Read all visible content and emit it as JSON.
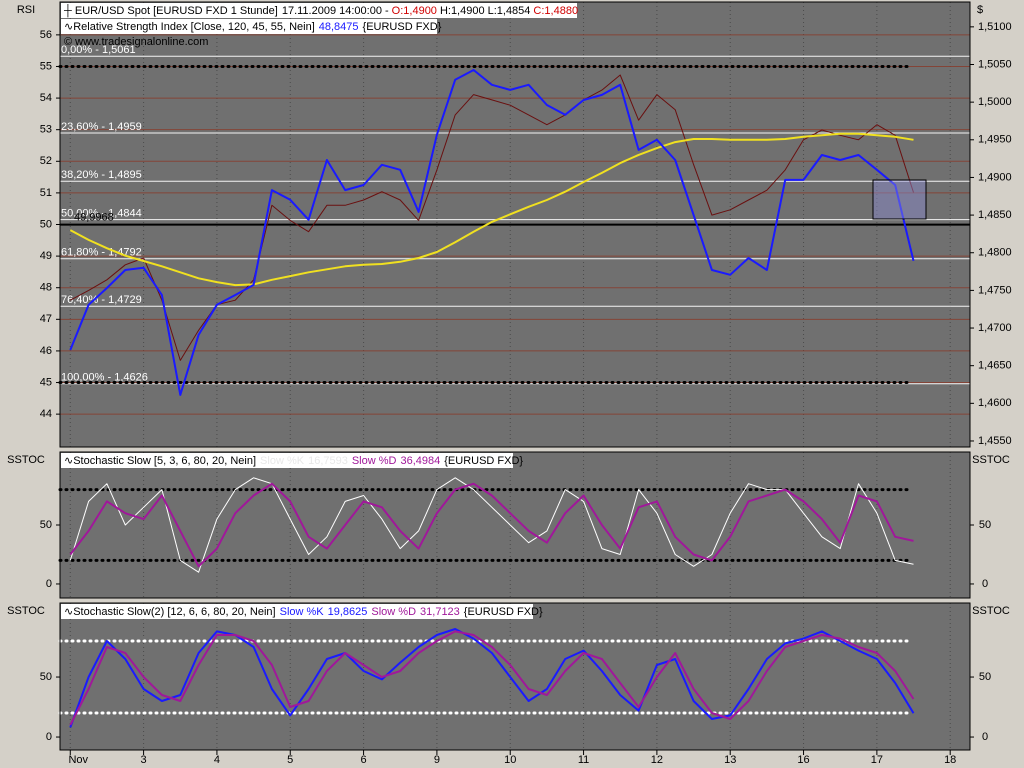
{
  "chart_data": [
    {
      "type": "line",
      "title": "EUR/USD Spot [EURUSD FXD  1 Stunde]",
      "timestamp": "17.11.2009 14:00:00 -",
      "ohlc": [
        {
          "text": "O:1,4900",
          "color": "#d00000"
        },
        {
          "text": "H:1,4900",
          "color": "#000000"
        },
        {
          "text": "L:1,4854",
          "color": "#000000"
        },
        {
          "text": "C:1,4880",
          "color": "#d00000"
        }
      ],
      "indicator": "Relative Strength Index [Close, 120, 45, 55, Nein]",
      "indicator_value": "48,8475",
      "indicator_value_color": "#1a1aff",
      "symbol": "{EURUSD FXD}",
      "copyright": "© www.tradesignalonline.com",
      "ylabel": "RSI",
      "y2label": "$",
      "xlim": [
        -0.14,
        12.27
      ],
      "ylim": [
        42.96,
        57.04
      ],
      "yticks": [
        44,
        45,
        46,
        47,
        48,
        49,
        50,
        51,
        52,
        53,
        54,
        55,
        56
      ],
      "y2lim": [
        1.4542,
        1.5133
      ],
      "y2ticks": [
        {
          "value": 1.455,
          "label": "1,4550"
        },
        {
          "value": 1.46,
          "label": "1,4600"
        },
        {
          "value": 1.465,
          "label": "1,4650"
        },
        {
          "value": 1.47,
          "label": "1,4700"
        },
        {
          "value": 1.475,
          "label": "1,4750"
        },
        {
          "value": 1.48,
          "label": "1,4800"
        },
        {
          "value": 1.485,
          "label": "1,4850"
        },
        {
          "value": 1.49,
          "label": "1,4900"
        },
        {
          "value": 1.495,
          "label": "1,4950"
        },
        {
          "value": 1.5,
          "label": "1,5000"
        },
        {
          "value": 1.505,
          "label": "1,5050"
        },
        {
          "value": 1.51,
          "label": "1,5100"
        }
      ],
      "grid": true,
      "hlines": [
        45,
        55
      ],
      "hline_color": "#000000",
      "level_line": {
        "value": 49.9968,
        "label": "49,9968"
      },
      "fib_levels": [
        {
          "value": 1.5061,
          "label": "0,00% - 1,5061"
        },
        {
          "value": 1.4959,
          "label": "23,60% - 1,4959"
        },
        {
          "value": 1.4895,
          "label": "38,20% - 1,4895"
        },
        {
          "value": 1.4844,
          "label": "50,00% - 1,4844"
        },
        {
          "value": 1.4792,
          "label": "61,80% - 1,4792"
        },
        {
          "value": 1.4729,
          "label": "76,40% - 1,4729"
        },
        {
          "value": 1.4626,
          "label": "100,00% - 1,4626"
        }
      ],
      "x": [
        0,
        0.25,
        0.5,
        0.75,
        1,
        1.25,
        1.5,
        1.75,
        2,
        2.25,
        2.5,
        2.75,
        3,
        3.25,
        3.5,
        3.75,
        4,
        4.25,
        4.5,
        4.75,
        5,
        5.25,
        5.5,
        5.75,
        6,
        6.25,
        6.5,
        6.75,
        7,
        7.25,
        7.5,
        7.75,
        8,
        8.25,
        8.5,
        8.75,
        9,
        9.25,
        9.5,
        9.75,
        10,
        10.25,
        10.5,
        10.75,
        11,
        11.25,
        11.5
      ],
      "series": [
        {
          "axis": "y2",
          "color": "#6a1010",
          "width": 1,
          "values": [
            1.4737,
            1.475,
            1.4764,
            1.4784,
            1.4793,
            1.4737,
            1.4657,
            1.4697,
            1.4731,
            1.4737,
            1.4764,
            1.4863,
            1.4843,
            1.4828,
            1.4863,
            1.4863,
            1.487,
            1.4881,
            1.487,
            1.4843,
            1.491,
            1.4983,
            1.501,
            1.5003,
            1.4996,
            1.4983,
            1.497,
            1.4983,
            1.5003,
            1.5016,
            1.5036,
            1.4976,
            1.501,
            1.499,
            1.4917,
            1.485,
            1.4857,
            1.487,
            1.4883,
            1.491,
            1.495,
            1.4963,
            1.4956,
            1.495,
            1.497,
            1.4956,
            1.488
          ]
        },
        {
          "axis": "y2",
          "color": "#f0e020",
          "width": 2,
          "values": [
            1.483,
            1.4817,
            1.4806,
            1.4796,
            1.4789,
            1.4782,
            1.4774,
            1.4766,
            1.4761,
            1.4757,
            1.4758,
            1.4764,
            1.4769,
            1.4774,
            1.4778,
            1.4782,
            1.4784,
            1.4785,
            1.4788,
            1.4793,
            1.4801,
            1.4814,
            1.4828,
            1.4841,
            1.4851,
            1.4861,
            1.487,
            1.4881,
            1.4894,
            1.4906,
            1.4919,
            1.493,
            1.4939,
            1.4947,
            1.4951,
            1.4951,
            1.495,
            1.495,
            1.495,
            1.4951,
            1.4954,
            1.4956,
            1.4958,
            1.4958,
            1.4956,
            1.4954,
            1.495
          ]
        },
        {
          "color": "#1a1aff",
          "width": 2,
          "values": [
            46.03,
            47.46,
            47.99,
            48.56,
            48.63,
            47.77,
            44.61,
            46.51,
            47.46,
            47.77,
            48.09,
            51.09,
            50.78,
            50.15,
            52.04,
            51.09,
            51.25,
            51.89,
            51.73,
            50.4,
            52.84,
            54.58,
            54.89,
            54.42,
            54.26,
            54.42,
            53.78,
            53.47,
            53.94,
            54.1,
            54.42,
            52.36,
            52.68,
            52.04,
            50.3,
            48.56,
            48.41,
            48.94,
            48.56,
            51.41,
            51.41,
            52.2,
            52.04,
            52.2,
            51.73,
            51.25,
            48.85
          ]
        }
      ]
    },
    {
      "type": "line",
      "indicator": "Stochastic Slow [5, 3, 6, 80, 20, Nein]",
      "symbol": "{EURUSD FXD}",
      "ylabel": "SSTOC",
      "y2label": "SSTOC",
      "xlim": [
        -0.14,
        12.27
      ],
      "ylim": [
        -11.9,
        111.9
      ],
      "yticks": [
        0,
        50
      ],
      "grid": false,
      "hlines": [
        20,
        80
      ],
      "hline_color": "#000000",
      "x": [
        0,
        0.25,
        0.5,
        0.75,
        1,
        1.25,
        1.5,
        1.75,
        2,
        2.25,
        2.5,
        2.75,
        3,
        3.25,
        3.5,
        3.75,
        4,
        4.25,
        4.5,
        4.75,
        5,
        5.25,
        5.5,
        5.75,
        6,
        6.25,
        6.5,
        6.75,
        7,
        7.25,
        7.5,
        7.75,
        8,
        8.25,
        8.5,
        8.75,
        9,
        9.25,
        9.5,
        9.75,
        10,
        10.25,
        10.5,
        10.75,
        11,
        11.25,
        11.5
      ],
      "series": [
        {
          "name": "Slow %K",
          "last_label": "16,7593",
          "color": "#ffffff",
          "width": 1,
          "values": [
            20,
            70,
            85,
            50,
            65,
            80,
            20,
            10,
            55,
            80,
            90,
            85,
            55,
            25,
            40,
            70,
            75,
            55,
            30,
            45,
            80,
            90,
            80,
            65,
            50,
            35,
            45,
            80,
            70,
            30,
            25,
            80,
            60,
            25,
            15,
            25,
            60,
            85,
            80,
            80,
            60,
            40,
            30,
            85,
            60,
            20,
            16.76
          ]
        },
        {
          "name": "Slow %D",
          "last_label": "36,4984",
          "color": "#a0189a",
          "width": 2,
          "values": [
            25,
            45,
            70,
            60,
            55,
            75,
            45,
            15,
            30,
            60,
            75,
            85,
            70,
            40,
            30,
            50,
            70,
            65,
            45,
            30,
            60,
            80,
            85,
            75,
            60,
            45,
            35,
            60,
            75,
            50,
            30,
            65,
            70,
            40,
            25,
            20,
            40,
            70,
            75,
            80,
            70,
            55,
            35,
            75,
            70,
            40,
            36.5
          ]
        }
      ]
    },
    {
      "type": "line",
      "indicator": "Stochastic Slow(2) [12, 6, 6, 80, 20, Nein]",
      "symbol": "{EURUSD FXD}",
      "ylabel": "SSTOC",
      "y2label": "SSTOC",
      "xlim": [
        -0.14,
        12.27
      ],
      "ylim": [
        -10.8,
        111.7
      ],
      "yticks": [
        0,
        50
      ],
      "grid": false,
      "hlines": [
        20,
        80
      ],
      "hline_color": "#ffffff",
      "xticks": [
        {
          "value": 0,
          "label": "Nov"
        },
        {
          "value": 1,
          "label": "3"
        },
        {
          "value": 2,
          "label": "4"
        },
        {
          "value": 3,
          "label": "5"
        },
        {
          "value": 4,
          "label": "6"
        },
        {
          "value": 5,
          "label": "9"
        },
        {
          "value": 6,
          "label": "10"
        },
        {
          "value": 7,
          "label": "11"
        },
        {
          "value": 8,
          "label": "12"
        },
        {
          "value": 9,
          "label": "13"
        },
        {
          "value": 10,
          "label": "16"
        },
        {
          "value": 11,
          "label": "17"
        },
        {
          "value": 12,
          "label": "18"
        }
      ],
      "x": [
        0,
        0.25,
        0.5,
        0.75,
        1,
        1.25,
        1.5,
        1.75,
        2,
        2.25,
        2.5,
        2.75,
        3,
        3.25,
        3.5,
        3.75,
        4,
        4.25,
        4.5,
        4.75,
        5,
        5.25,
        5.5,
        5.75,
        6,
        6.25,
        6.5,
        6.75,
        7,
        7.25,
        7.5,
        7.75,
        8,
        8.25,
        8.5,
        8.75,
        9,
        9.25,
        9.5,
        9.75,
        10,
        10.25,
        10.5,
        10.75,
        11,
        11.25,
        11.5
      ],
      "series": [
        {
          "name": "Slow %K",
          "last_label": "19,8625",
          "color": "#1a1aff",
          "width": 2,
          "values": [
            8,
            50,
            80,
            65,
            40,
            30,
            35,
            70,
            88,
            85,
            75,
            40,
            18,
            40,
            65,
            70,
            55,
            48,
            62,
            75,
            85,
            90,
            82,
            70,
            50,
            30,
            40,
            65,
            72,
            55,
            35,
            22,
            60,
            65,
            30,
            15,
            18,
            40,
            65,
            78,
            82,
            88,
            80,
            72,
            65,
            45,
            19.86
          ]
        },
        {
          "name": "Slow %D",
          "last_label": "31,7123",
          "color": "#a0189a",
          "width": 2,
          "values": [
            10,
            40,
            75,
            70,
            50,
            35,
            30,
            60,
            85,
            85,
            80,
            60,
            25,
            30,
            55,
            70,
            60,
            50,
            55,
            70,
            80,
            88,
            85,
            75,
            60,
            40,
            35,
            55,
            70,
            65,
            45,
            25,
            50,
            70,
            40,
            20,
            15,
            30,
            55,
            75,
            80,
            85,
            82,
            75,
            70,
            55,
            31.71
          ]
        }
      ]
    }
  ]
}
